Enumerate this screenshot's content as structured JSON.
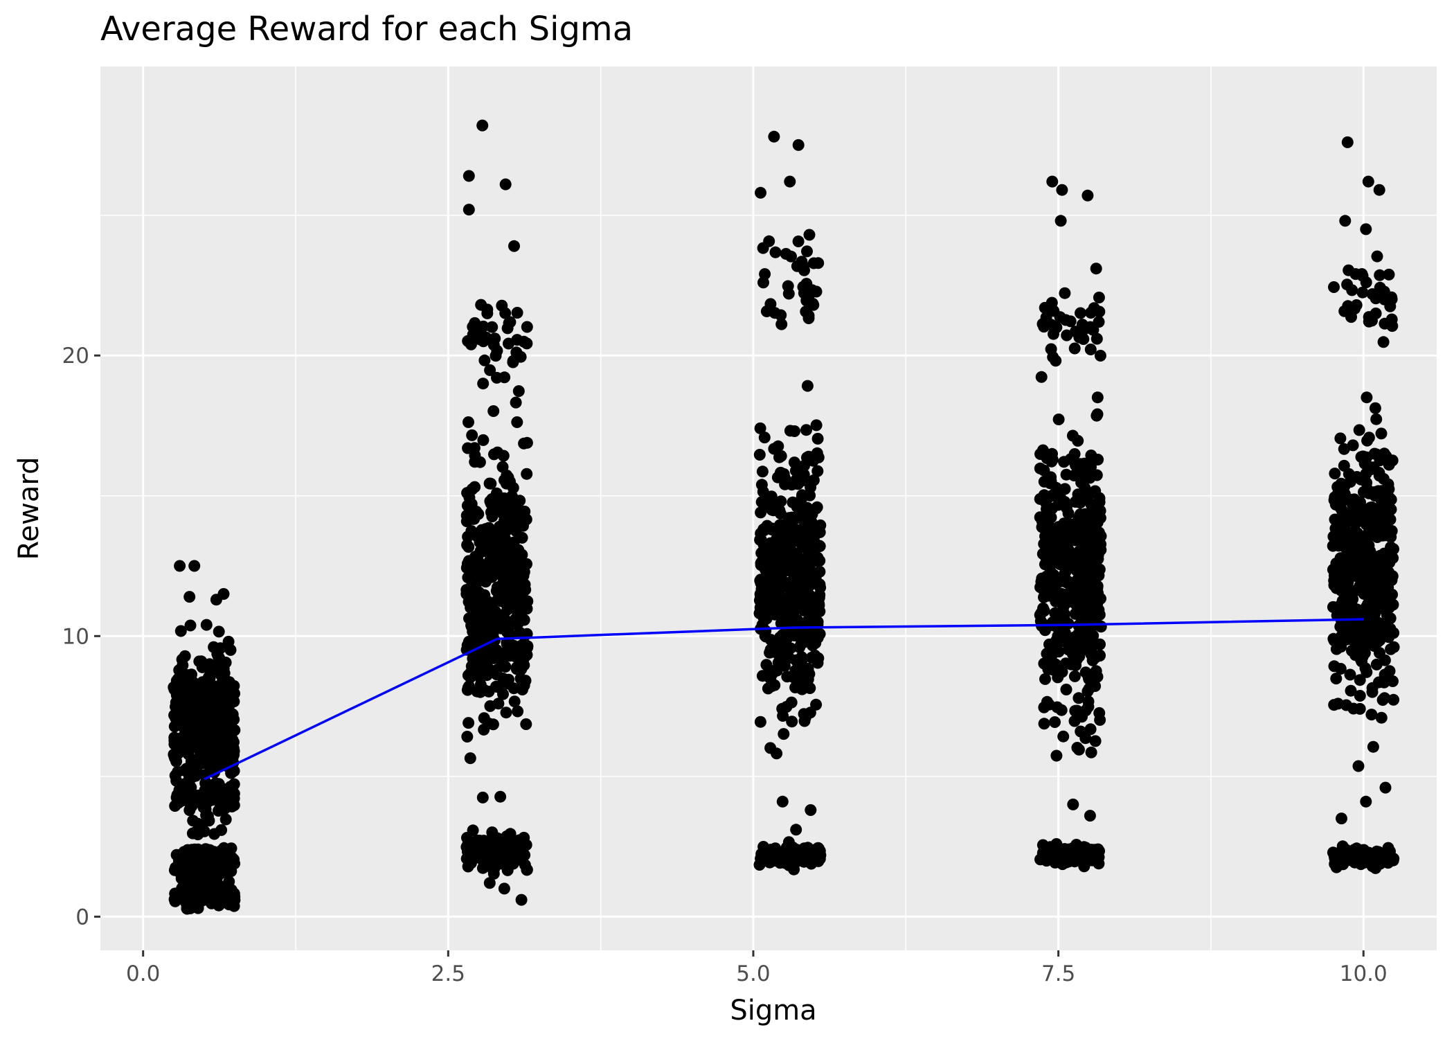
{
  "chart_data": {
    "type": "scatter",
    "title": "Average Reward for each Sigma",
    "xlabel": "Sigma",
    "ylabel": "Reward",
    "xlim": [
      -0.35,
      10.6
    ],
    "ylim": [
      -1.2,
      30.3
    ],
    "grid": true,
    "background": "#ebebeb",
    "x_ticks": [
      {
        "value": 0.0,
        "label": "0.0"
      },
      {
        "value": 2.5,
        "label": "2.5"
      },
      {
        "value": 5.0,
        "label": "5.0"
      },
      {
        "value": 7.5,
        "label": "7.5"
      },
      {
        "value": 10.0,
        "label": "10.0"
      }
    ],
    "x_minor_ticks": [
      1.25,
      3.75,
      6.25,
      8.75
    ],
    "y_ticks": [
      {
        "value": 0,
        "label": "0"
      },
      {
        "value": 10,
        "label": "10"
      },
      {
        "value": 20,
        "label": "20"
      }
    ],
    "y_minor_ticks": [
      5,
      15,
      25
    ],
    "point_color": "#000000",
    "jitter_width": 0.25,
    "groups": [
      {
        "sigma": 0.5,
        "extremes": [
          [
            0.3,
            12.5
          ],
          [
            0.42,
            12.5
          ],
          [
            0.38,
            11.4
          ],
          [
            0.6,
            11.3
          ],
          [
            0.66,
            11.5
          ],
          [
            0.52,
            10.4
          ],
          [
            0.7,
            9.8
          ],
          [
            0.36,
            0.3
          ],
          [
            0.62,
            0.4
          ]
        ],
        "clusters": [
          {
            "center": 7.0,
            "spread": 2.5,
            "count": 360
          },
          {
            "center": 4.3,
            "spread": 1.0,
            "count": 70
          },
          {
            "center": 1.9,
            "spread": 0.8,
            "count": 110
          },
          {
            "center": 0.7,
            "spread": 0.45,
            "count": 90
          }
        ]
      },
      {
        "sigma": 2.9,
        "extremes": [
          [
            2.78,
            28.2
          ],
          [
            2.67,
            26.4
          ],
          [
            2.97,
            26.1
          ],
          [
            2.67,
            25.2
          ],
          [
            3.04,
            23.9
          ],
          [
            3.1,
            0.6
          ],
          [
            2.96,
            1.0
          ],
          [
            2.84,
            1.2
          ]
        ],
        "clusters": [
          {
            "center": 11.8,
            "spread": 4.6,
            "count": 430
          },
          {
            "center": 2.3,
            "spread": 0.55,
            "count": 130
          },
          {
            "center": 20.5,
            "spread": 1.6,
            "count": 40
          }
        ]
      },
      {
        "sigma": 5.3,
        "extremes": [
          [
            5.17,
            27.8
          ],
          [
            5.37,
            27.5
          ],
          [
            5.06,
            25.8
          ],
          [
            5.3,
            26.2
          ],
          [
            5.46,
            24.3
          ],
          [
            5.24,
            4.1
          ],
          [
            5.47,
            3.8
          ],
          [
            5.35,
            3.1
          ]
        ],
        "clusters": [
          {
            "center": 12.2,
            "spread": 4.6,
            "count": 430
          },
          {
            "center": 2.2,
            "spread": 0.35,
            "count": 110
          },
          {
            "center": 22.5,
            "spread": 1.6,
            "count": 35
          }
        ]
      },
      {
        "sigma": 7.6,
        "extremes": [
          [
            7.45,
            26.2
          ],
          [
            7.53,
            25.9
          ],
          [
            7.74,
            25.7
          ],
          [
            7.52,
            24.8
          ],
          [
            7.81,
            23.1
          ],
          [
            7.76,
            3.6
          ],
          [
            7.62,
            4.0
          ]
        ],
        "clusters": [
          {
            "center": 12.2,
            "spread": 4.6,
            "count": 460
          },
          {
            "center": 2.2,
            "spread": 0.3,
            "count": 110
          },
          {
            "center": 21.0,
            "spread": 1.5,
            "count": 35
          }
        ]
      },
      {
        "sigma": 10.0,
        "extremes": [
          [
            9.87,
            27.6
          ],
          [
            10.04,
            26.2
          ],
          [
            10.13,
            25.9
          ],
          [
            9.85,
            24.8
          ],
          [
            10.02,
            24.5
          ],
          [
            9.82,
            3.5
          ],
          [
            10.02,
            4.1
          ],
          [
            10.18,
            4.6
          ]
        ],
        "clusters": [
          {
            "center": 12.5,
            "spread": 4.4,
            "count": 450
          },
          {
            "center": 2.1,
            "spread": 0.3,
            "count": 110
          },
          {
            "center": 22.0,
            "spread": 1.5,
            "count": 35
          }
        ]
      }
    ],
    "series": [
      {
        "type": "line",
        "color": "#0000ff",
        "x": [
          0.5,
          2.9,
          5.3,
          7.6,
          10.0
        ],
        "y": [
          4.9,
          9.9,
          10.3,
          10.4,
          10.6
        ]
      }
    ]
  }
}
